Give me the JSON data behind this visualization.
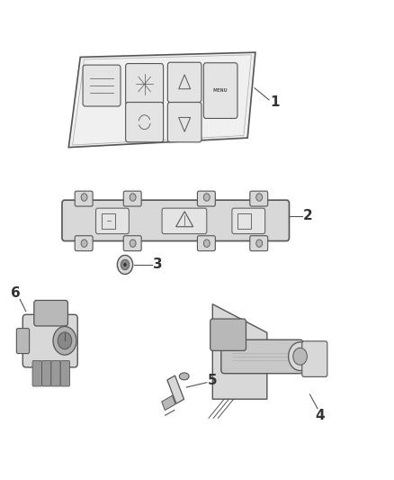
{
  "bg_color": "#ffffff",
  "line_color": "#555555",
  "light_color": "#aaaaaa",
  "lighter_color": "#cccccc",
  "dark_color": "#333333",
  "label_color": "#222222",
  "label_fontsize": 11,
  "fill_light": "#f0f0f0",
  "fill_mid": "#d8d8d8",
  "fill_dark": "#b8b8b8",
  "fill_btn": "#e4e4e4",
  "fill_knob": "#c0c0c0"
}
